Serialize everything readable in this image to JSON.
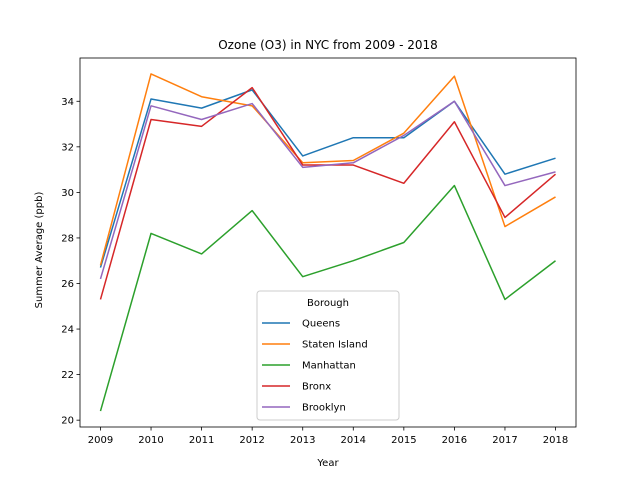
{
  "chart_data": {
    "type": "line",
    "title": "Ozone (O3) in NYC from 2009 - 2018",
    "xlabel": "Year",
    "ylabel": "Summer Average (ppb)",
    "x": [
      2009,
      2010,
      2011,
      2012,
      2013,
      2014,
      2015,
      2016,
      2017,
      2018
    ],
    "xticks": [
      "2009",
      "2010",
      "2011",
      "2012",
      "2013",
      "2014",
      "2015",
      "2016",
      "2017",
      "2018"
    ],
    "ylim": [
      19.7,
      35.9
    ],
    "yticks": [
      20,
      22,
      24,
      26,
      28,
      30,
      32,
      34
    ],
    "grid": false,
    "legend": {
      "title": "Borough",
      "placement": "lower center"
    },
    "series": [
      {
        "name": "Queens",
        "color": "#1f77b4",
        "values": [
          26.7,
          34.1,
          33.7,
          34.5,
          31.6,
          32.4,
          32.4,
          34.0,
          30.8,
          31.5
        ]
      },
      {
        "name": "Staten Island",
        "color": "#ff7f0e",
        "values": [
          26.8,
          35.2,
          34.2,
          33.8,
          31.3,
          31.4,
          32.6,
          35.1,
          28.5,
          29.8
        ]
      },
      {
        "name": "Manhattan",
        "color": "#2ca02c",
        "values": [
          20.4,
          28.2,
          27.3,
          29.2,
          26.3,
          27.0,
          27.8,
          30.3,
          25.3,
          27.0
        ]
      },
      {
        "name": "Bronx",
        "color": "#d62728",
        "values": [
          25.3,
          33.2,
          32.9,
          34.6,
          31.2,
          31.2,
          30.4,
          33.1,
          28.9,
          30.8
        ]
      },
      {
        "name": "Brooklyn",
        "color": "#9467bd",
        "values": [
          26.2,
          33.8,
          33.2,
          33.9,
          31.1,
          31.3,
          32.5,
          34.0,
          30.3,
          30.9
        ]
      }
    ]
  }
}
